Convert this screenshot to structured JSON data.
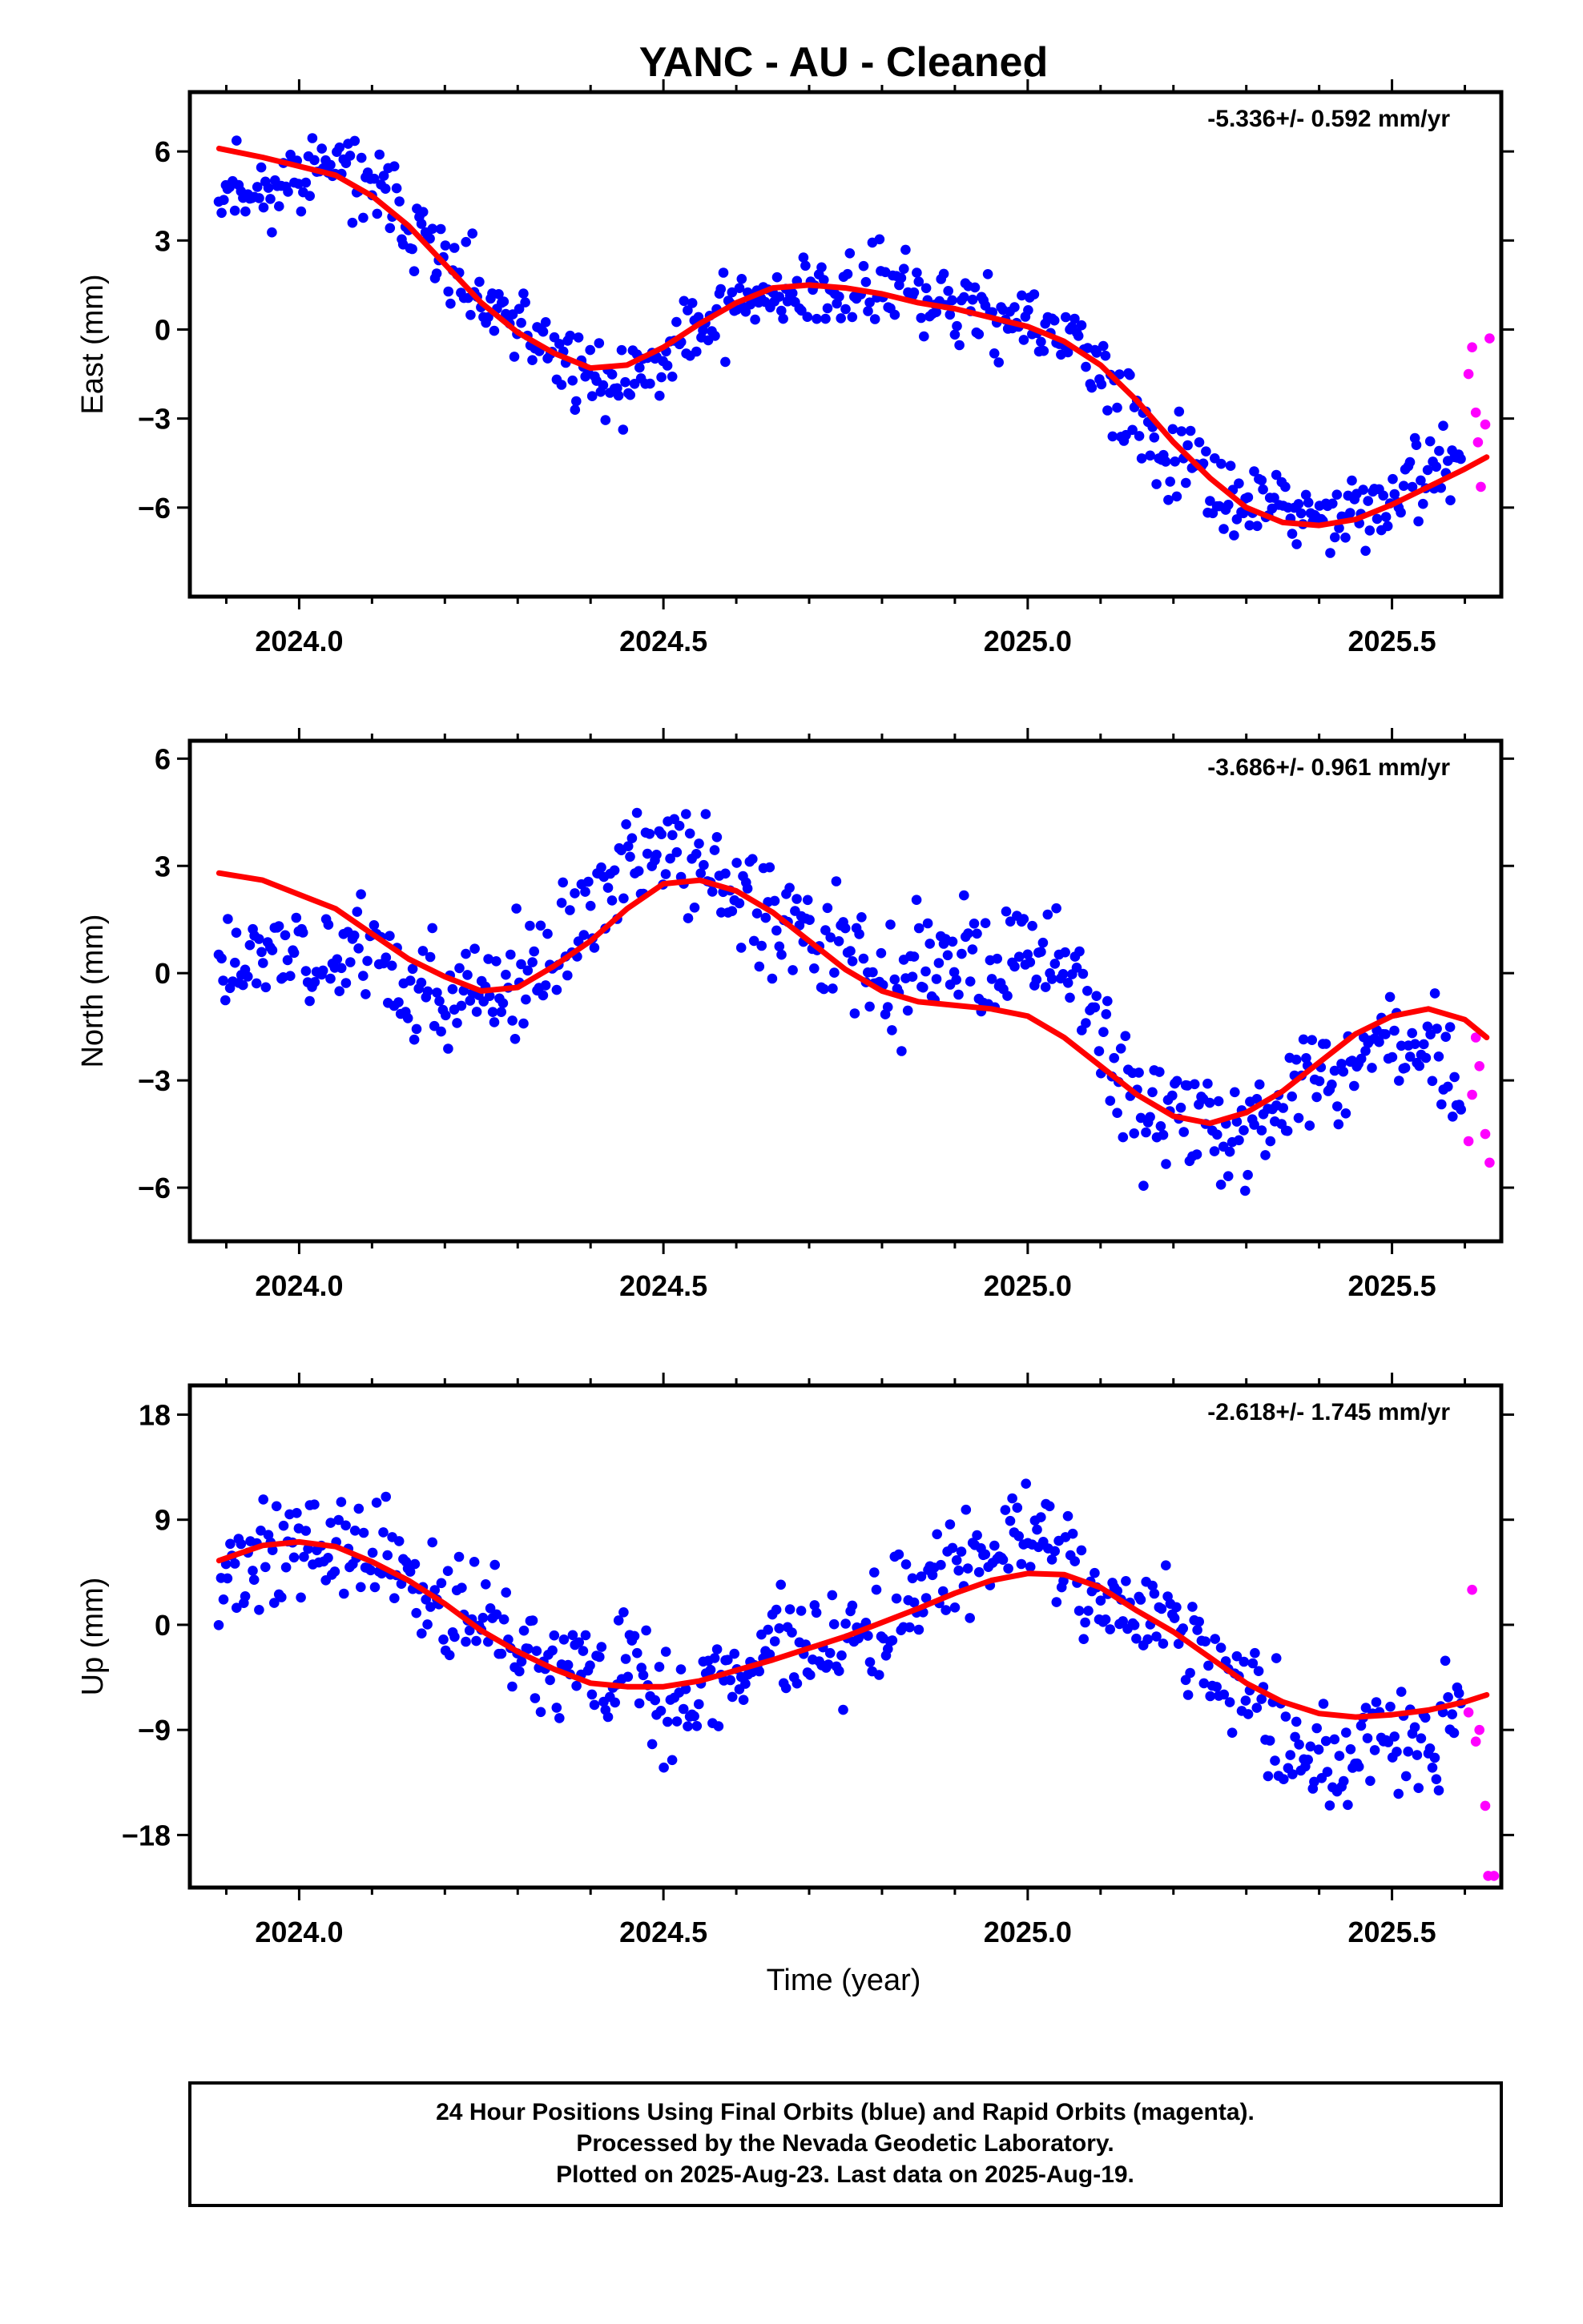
{
  "title": "YANC  - AU - Cleaned",
  "xlabel": "Time (year)",
  "footer": [
    "24 Hour Positions Using Final Orbits (blue) and Rapid Orbits (magenta).",
    "Processed by the Nevada Geodetic Laboratory.",
    "Plotted on 2025-Aug-23. Last data on 2025-Aug-19."
  ],
  "colors": {
    "final": "#0000ff",
    "rapid": "#ff00ff",
    "model": "#ff0000",
    "frame": "#000000"
  },
  "chart_data": [
    {
      "type": "scatter",
      "panel": "east",
      "ylabel": "East (mm)",
      "rate_text": "-5.336+/- 0.592 mm/yr",
      "xlim": [
        2023.85,
        2025.65
      ],
      "ylim": [
        -9,
        8
      ],
      "xticks": [
        2024.0,
        2024.5,
        2025.0,
        2025.5
      ],
      "xtick_labels": [
        "2024.0",
        "2024.5",
        "2025.0",
        "2025.5"
      ],
      "yticks": [
        -6,
        -3,
        0,
        3,
        6
      ],
      "ytick_labels": [
        "−6",
        "−3",
        "0",
        "3",
        "6"
      ],
      "model": [
        [
          2023.89,
          6.1
        ],
        [
          2023.95,
          5.8
        ],
        [
          2024.0,
          5.5
        ],
        [
          2024.05,
          5.2
        ],
        [
          2024.1,
          4.5
        ],
        [
          2024.15,
          3.5
        ],
        [
          2024.2,
          2.2
        ],
        [
          2024.25,
          0.9
        ],
        [
          2024.3,
          -0.1
        ],
        [
          2024.35,
          -0.8
        ],
        [
          2024.4,
          -1.3
        ],
        [
          2024.45,
          -1.2
        ],
        [
          2024.5,
          -0.6
        ],
        [
          2024.55,
          0.2
        ],
        [
          2024.6,
          0.9
        ],
        [
          2024.65,
          1.4
        ],
        [
          2024.7,
          1.5
        ],
        [
          2024.75,
          1.4
        ],
        [
          2024.8,
          1.2
        ],
        [
          2024.85,
          0.9
        ],
        [
          2024.9,
          0.7
        ],
        [
          2024.95,
          0.4
        ],
        [
          2025.0,
          0.1
        ],
        [
          2025.05,
          -0.4
        ],
        [
          2025.1,
          -1.2
        ],
        [
          2025.15,
          -2.4
        ],
        [
          2025.2,
          -3.8
        ],
        [
          2025.25,
          -5.0
        ],
        [
          2025.3,
          -6.0
        ],
        [
          2025.35,
          -6.5
        ],
        [
          2025.4,
          -6.6
        ],
        [
          2025.45,
          -6.4
        ],
        [
          2025.5,
          -5.9
        ],
        [
          2025.55,
          -5.3
        ],
        [
          2025.6,
          -4.7
        ],
        [
          2025.63,
          -4.3
        ]
      ],
      "anchors": [
        [
          2023.89,
          5.0
        ],
        [
          2023.95,
          4.6
        ],
        [
          2024.0,
          5.3
        ],
        [
          2024.05,
          5.5
        ],
        [
          2024.1,
          4.8
        ],
        [
          2024.15,
          3.8
        ],
        [
          2024.2,
          2.0
        ],
        [
          2024.25,
          0.9
        ],
        [
          2024.3,
          0.0
        ],
        [
          2024.35,
          -0.7
        ],
        [
          2024.4,
          -1.6
        ],
        [
          2024.45,
          -2.0
        ],
        [
          2024.5,
          -0.8
        ],
        [
          2024.55,
          0.3
        ],
        [
          2024.6,
          0.9
        ],
        [
          2024.65,
          1.3
        ],
        [
          2024.7,
          1.2
        ],
        [
          2024.75,
          1.3
        ],
        [
          2024.8,
          1.4
        ],
        [
          2024.85,
          1.1
        ],
        [
          2024.9,
          0.9
        ],
        [
          2024.95,
          0.5
        ],
        [
          2025.0,
          0.2
        ],
        [
          2025.05,
          -0.4
        ],
        [
          2025.1,
          -1.4
        ],
        [
          2025.15,
          -3.2
        ],
        [
          2025.2,
          -4.4
        ],
        [
          2025.25,
          -5.1
        ],
        [
          2025.3,
          -5.8
        ],
        [
          2025.35,
          -6.1
        ],
        [
          2025.4,
          -6.5
        ],
        [
          2025.45,
          -6.2
        ],
        [
          2025.5,
          -5.8
        ],
        [
          2025.55,
          -4.8
        ],
        [
          2025.6,
          -4.3
        ]
      ],
      "final_range": [
        2023.89,
        2025.595
      ],
      "spread": 0.95,
      "seed": 11,
      "rapid": [
        [
          2025.605,
          -1.5
        ],
        [
          2025.61,
          -0.6
        ],
        [
          2025.615,
          -2.8
        ],
        [
          2025.618,
          -3.8
        ],
        [
          2025.622,
          -5.3
        ],
        [
          2025.628,
          -3.2
        ],
        [
          2025.634,
          -0.3
        ]
      ]
    },
    {
      "type": "scatter",
      "panel": "north",
      "ylabel": "North (mm)",
      "rate_text": "-3.686+/- 0.961 mm/yr",
      "xlim": [
        2023.85,
        2025.65
      ],
      "ylim": [
        -7.5,
        6.5
      ],
      "xticks": [
        2024.0,
        2024.5,
        2025.0,
        2025.5
      ],
      "xtick_labels": [
        "2024.0",
        "2024.5",
        "2025.0",
        "2025.5"
      ],
      "yticks": [
        -6,
        -3,
        0,
        3,
        6
      ],
      "ytick_labels": [
        "−6",
        "−3",
        "0",
        "3",
        "6"
      ],
      "model": [
        [
          2023.89,
          2.8
        ],
        [
          2023.95,
          2.6
        ],
        [
          2024.0,
          2.2
        ],
        [
          2024.05,
          1.8
        ],
        [
          2024.1,
          1.1
        ],
        [
          2024.15,
          0.4
        ],
        [
          2024.2,
          -0.1
        ],
        [
          2024.25,
          -0.5
        ],
        [
          2024.3,
          -0.4
        ],
        [
          2024.35,
          0.2
        ],
        [
          2024.4,
          0.9
        ],
        [
          2024.45,
          1.8
        ],
        [
          2024.5,
          2.5
        ],
        [
          2024.55,
          2.6
        ],
        [
          2024.6,
          2.3
        ],
        [
          2024.65,
          1.7
        ],
        [
          2024.7,
          0.9
        ],
        [
          2024.75,
          0.1
        ],
        [
          2024.8,
          -0.5
        ],
        [
          2024.85,
          -0.8
        ],
        [
          2024.9,
          -0.9
        ],
        [
          2024.95,
          -1.0
        ],
        [
          2025.0,
          -1.2
        ],
        [
          2025.05,
          -1.8
        ],
        [
          2025.1,
          -2.6
        ],
        [
          2025.15,
          -3.4
        ],
        [
          2025.2,
          -4.0
        ],
        [
          2025.25,
          -4.2
        ],
        [
          2025.3,
          -3.9
        ],
        [
          2025.35,
          -3.3
        ],
        [
          2025.4,
          -2.5
        ],
        [
          2025.45,
          -1.7
        ],
        [
          2025.5,
          -1.2
        ],
        [
          2025.55,
          -1.0
        ],
        [
          2025.6,
          -1.3
        ],
        [
          2025.63,
          -1.8
        ]
      ],
      "anchors": [
        [
          2023.89,
          0.3
        ],
        [
          2023.95,
          0.4
        ],
        [
          2024.0,
          0.6
        ],
        [
          2024.05,
          0.7
        ],
        [
          2024.1,
          0.8
        ],
        [
          2024.15,
          -0.6
        ],
        [
          2024.2,
          -0.6
        ],
        [
          2024.25,
          -0.7
        ],
        [
          2024.3,
          -0.3
        ],
        [
          2024.35,
          0.4
        ],
        [
          2024.4,
          1.6
        ],
        [
          2024.45,
          3.0
        ],
        [
          2024.5,
          3.5
        ],
        [
          2024.55,
          3.0
        ],
        [
          2024.6,
          2.2
        ],
        [
          2024.65,
          1.6
        ],
        [
          2024.7,
          1.2
        ],
        [
          2024.75,
          1.0
        ],
        [
          2024.8,
          -0.4
        ],
        [
          2024.85,
          -0.2
        ],
        [
          2024.9,
          0.3
        ],
        [
          2024.95,
          0.2
        ],
        [
          2025.0,
          0.4
        ],
        [
          2025.05,
          0.5
        ],
        [
          2025.1,
          -1.9
        ],
        [
          2025.15,
          -3.6
        ],
        [
          2025.2,
          -4.0
        ],
        [
          2025.25,
          -4.3
        ],
        [
          2025.3,
          -4.5
        ],
        [
          2025.35,
          -3.8
        ],
        [
          2025.4,
          -2.9
        ],
        [
          2025.45,
          -2.2
        ],
        [
          2025.5,
          -1.6
        ],
        [
          2025.55,
          -1.8
        ],
        [
          2025.59,
          -3.3
        ]
      ],
      "final_range": [
        2023.89,
        2025.595
      ],
      "spread": 1.05,
      "seed": 23,
      "rapid": [
        [
          2025.605,
          -4.7
        ],
        [
          2025.61,
          -3.4
        ],
        [
          2025.615,
          -1.8
        ],
        [
          2025.62,
          -2.6
        ],
        [
          2025.628,
          -4.5
        ],
        [
          2025.634,
          -5.3
        ]
      ]
    },
    {
      "type": "scatter",
      "panel": "up",
      "ylabel": "Up (mm)",
      "rate_text": "-2.618+/- 1.745 mm/yr",
      "xlim": [
        2023.85,
        2025.65
      ],
      "ylim": [
        -22.5,
        20.5
      ],
      "xticks": [
        2024.0,
        2024.5,
        2025.0,
        2025.5
      ],
      "xtick_labels": [
        "2024.0",
        "2024.5",
        "2025.0",
        "2025.5"
      ],
      "yticks": [
        -18,
        -9,
        0,
        9,
        18
      ],
      "ytick_labels": [
        "−18",
        "−9",
        "0",
        "9",
        "18"
      ],
      "model": [
        [
          2023.89,
          5.5
        ],
        [
          2023.95,
          6.8
        ],
        [
          2024.0,
          7.1
        ],
        [
          2024.05,
          6.7
        ],
        [
          2024.1,
          5.4
        ],
        [
          2024.15,
          3.8
        ],
        [
          2024.2,
          1.8
        ],
        [
          2024.25,
          -0.5
        ],
        [
          2024.3,
          -2.3
        ],
        [
          2024.35,
          -3.8
        ],
        [
          2024.4,
          -5.0
        ],
        [
          2024.45,
          -5.3
        ],
        [
          2024.5,
          -5.3
        ],
        [
          2024.55,
          -4.8
        ],
        [
          2024.6,
          -3.9
        ],
        [
          2024.65,
          -3.0
        ],
        [
          2024.7,
          -2.0
        ],
        [
          2024.75,
          -1.0
        ],
        [
          2024.8,
          0.2
        ],
        [
          2024.85,
          1.4
        ],
        [
          2024.9,
          2.7
        ],
        [
          2024.95,
          3.8
        ],
        [
          2025.0,
          4.4
        ],
        [
          2025.05,
          4.3
        ],
        [
          2025.1,
          3.2
        ],
        [
          2025.15,
          1.2
        ],
        [
          2025.2,
          -0.6
        ],
        [
          2025.25,
          -2.8
        ],
        [
          2025.3,
          -5.0
        ],
        [
          2025.35,
          -6.6
        ],
        [
          2025.4,
          -7.6
        ],
        [
          2025.45,
          -7.9
        ],
        [
          2025.5,
          -7.7
        ],
        [
          2025.55,
          -7.3
        ],
        [
          2025.6,
          -6.6
        ],
        [
          2025.63,
          -6.0
        ]
      ],
      "anchors": [
        [
          2023.89,
          4.5
        ],
        [
          2023.95,
          5.5
        ],
        [
          2024.0,
          7.0
        ],
        [
          2024.05,
          6.5
        ],
        [
          2024.1,
          6.0
        ],
        [
          2024.15,
          3.5
        ],
        [
          2024.2,
          3.0
        ],
        [
          2024.25,
          0.5
        ],
        [
          2024.3,
          -2.5
        ],
        [
          2024.35,
          -3.0
        ],
        [
          2024.4,
          -4.5
        ],
        [
          2024.45,
          -4.0
        ],
        [
          2024.5,
          -6.5
        ],
        [
          2024.55,
          -5.5
        ],
        [
          2024.6,
          -4.0
        ],
        [
          2024.65,
          -1.0
        ],
        [
          2024.7,
          -2.0
        ],
        [
          2024.75,
          0.0
        ],
        [
          2024.8,
          0.5
        ],
        [
          2024.85,
          2.0
        ],
        [
          2024.9,
          5.0
        ],
        [
          2024.95,
          6.0
        ],
        [
          2025.0,
          8.0
        ],
        [
          2025.05,
          6.0
        ],
        [
          2025.1,
          3.0
        ],
        [
          2025.15,
          1.0
        ],
        [
          2025.2,
          0.5
        ],
        [
          2025.25,
          -2.5
        ],
        [
          2025.3,
          -5.0
        ],
        [
          2025.35,
          -10.0
        ],
        [
          2025.4,
          -11.0
        ],
        [
          2025.45,
          -10.5
        ],
        [
          2025.5,
          -9.5
        ],
        [
          2025.55,
          -10.0
        ],
        [
          2025.59,
          -8.0
        ]
      ],
      "final_range": [
        2023.89,
        2025.595
      ],
      "spread": 3.2,
      "seed": 37,
      "rapid": [
        [
          2025.605,
          -7.5
        ],
        [
          2025.61,
          3.0
        ],
        [
          2025.615,
          -10.0
        ],
        [
          2025.62,
          -9.0
        ],
        [
          2025.628,
          -15.5
        ],
        [
          2025.632,
          -21.5
        ],
        [
          2025.64,
          -21.5
        ]
      ]
    }
  ]
}
